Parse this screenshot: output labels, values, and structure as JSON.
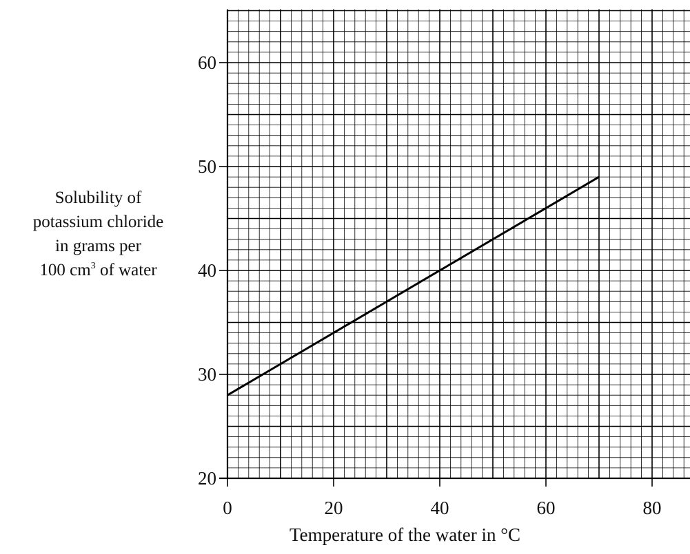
{
  "chart_data": {
    "type": "line",
    "xlabel": "Temperature of the water in °C",
    "ylabel_lines": [
      "Solubility of",
      "potassium chloride",
      "in grams per",
      "100 cm",
      "of water"
    ],
    "ylabel_superscript": "3",
    "xlim": [
      0,
      88
    ],
    "ylim": [
      20,
      65
    ],
    "xticks": [
      0,
      20,
      40,
      60,
      80
    ],
    "yticks": [
      20,
      30,
      40,
      50,
      60
    ],
    "grid": true,
    "series": [
      {
        "x": [
          0,
          20,
          40,
          60,
          70
        ],
        "y": [
          28,
          34,
          40,
          46,
          49
        ]
      }
    ]
  }
}
